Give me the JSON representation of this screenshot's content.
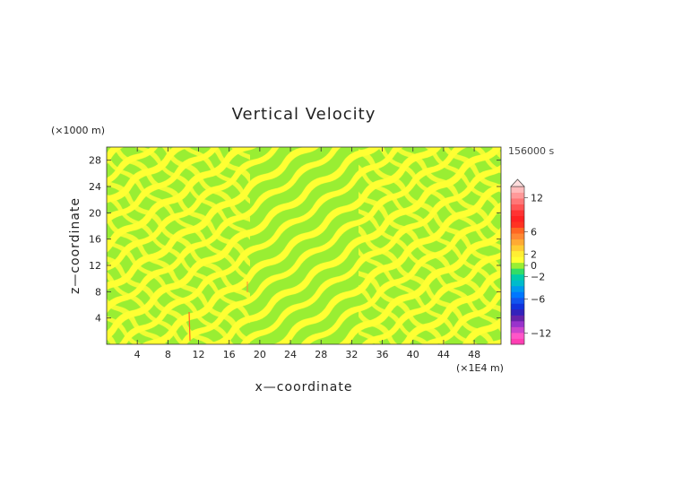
{
  "chart_data": {
    "type": "heatmap",
    "title": "Vertical Velocity",
    "xlabel": "x—coordinate",
    "ylabel": "z—coordinate",
    "x_unit": "(×1E4 m)",
    "y_unit": "(×1000 m)",
    "time_label": "156000 s",
    "x_ticks": [
      "4",
      "8",
      "12",
      "16",
      "20",
      "24",
      "28",
      "32",
      "36",
      "40",
      "44",
      "48"
    ],
    "x_tick_values": [
      4,
      8,
      12,
      16,
      20,
      24,
      28,
      32,
      36,
      40,
      44,
      48
    ],
    "xlim": [
      0,
      51.5
    ],
    "y_ticks": [
      "4",
      "8",
      "12",
      "16",
      "20",
      "24",
      "28"
    ],
    "y_tick_values": [
      4,
      8,
      12,
      16,
      20,
      24,
      28
    ],
    "ylim": [
      0,
      30
    ],
    "colorbar": {
      "labels": [
        "12",
        "6",
        "2",
        "0",
        "−2",
        "−6",
        "−12"
      ],
      "label_values": [
        12,
        6,
        2,
        0,
        -2,
        -6,
        -12
      ],
      "range": [
        -14,
        14
      ],
      "colors": [
        "#ff3eb3",
        "#ff56c8",
        "#cc44cc",
        "#9933cc",
        "#6622aa",
        "#3322bb",
        "#1133dd",
        "#1155ee",
        "#0077ff",
        "#0099ee",
        "#00bbcc",
        "#00ccaa",
        "#33dd66",
        "#99ee33",
        "#ffff33",
        "#ffee33",
        "#ffcc33",
        "#ffaa33",
        "#ff8833",
        "#ff6622",
        "#ff3322",
        "#ff2222",
        "#ff3333",
        "#ff5555",
        "#ff7777",
        "#ff9999",
        "#ffbbbb"
      ]
    },
    "field_colors": {
      "positive": "#ffff33",
      "negative": "#99ee33"
    }
  }
}
